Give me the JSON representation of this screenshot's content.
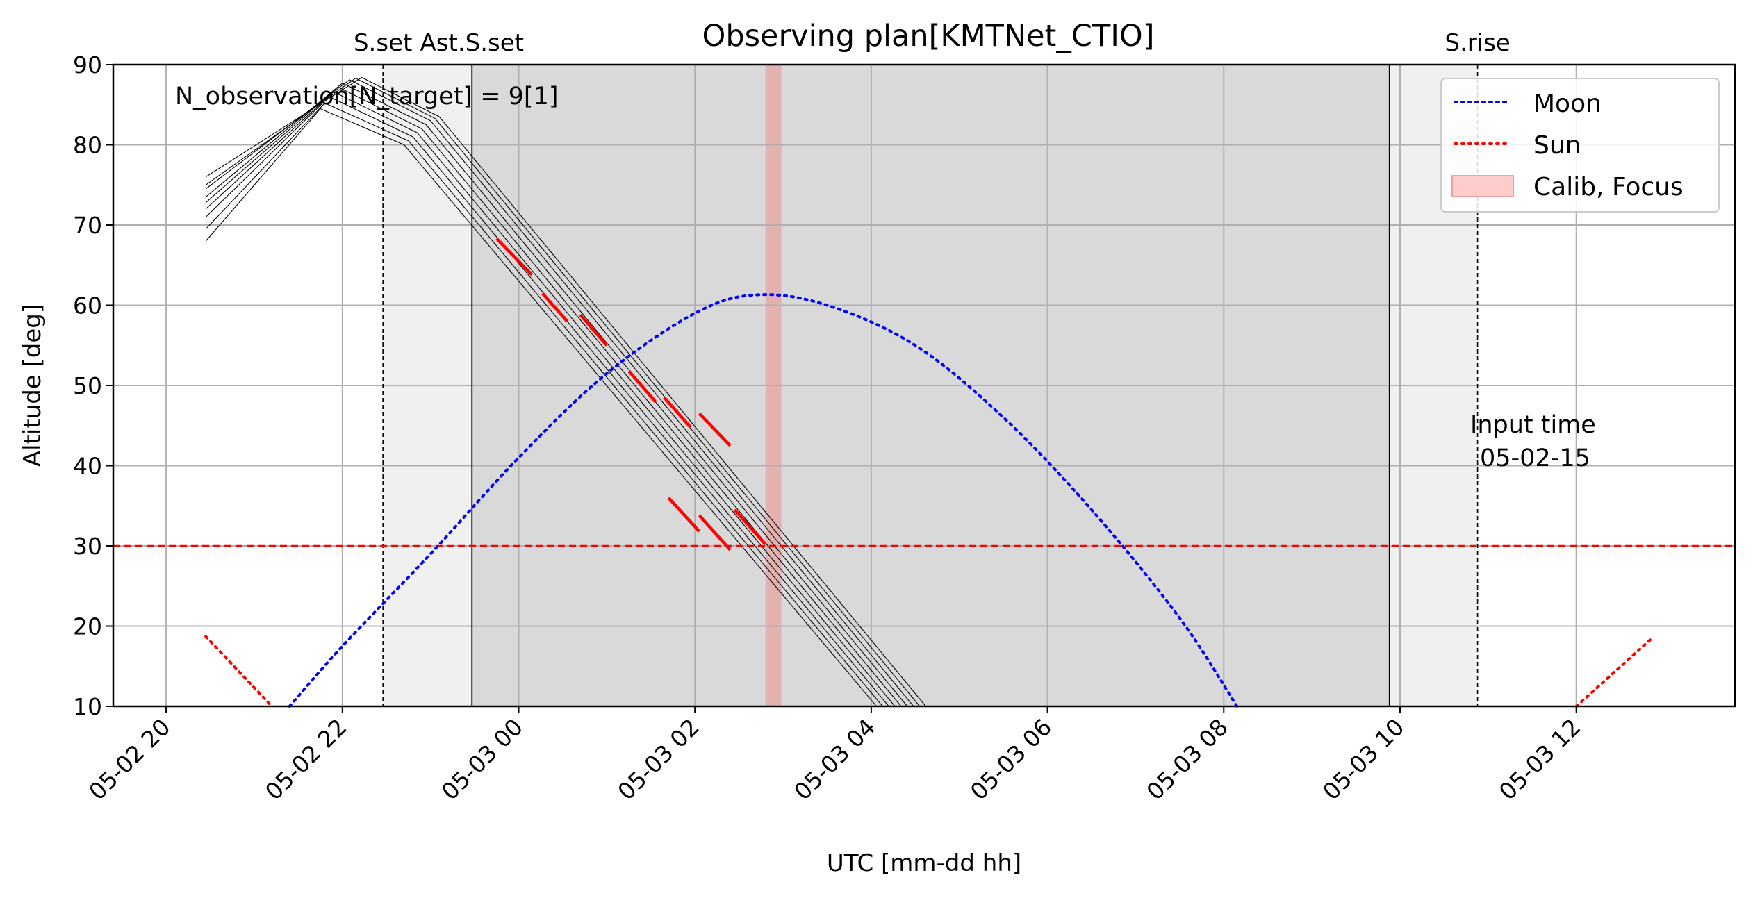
{
  "chart_data": {
    "type": "line",
    "title": "Observing plan[KMTNet_CTIO]",
    "xlabel": "UTC [mm-dd hh]",
    "ylabel": "Altitude [deg]",
    "x_unit": "hours since 05-02 20:00 UTC",
    "xlim": [
      -0.6,
      17.8
    ],
    "ylim": [
      10,
      90
    ],
    "x_ticks": [
      {
        "x": 0,
        "label": "05-02 20"
      },
      {
        "x": 2,
        "label": "05-02 22"
      },
      {
        "x": 4,
        "label": "05-03 00"
      },
      {
        "x": 6,
        "label": "05-03 02"
      },
      {
        "x": 8,
        "label": "05-03 04"
      },
      {
        "x": 10,
        "label": "05-03 06"
      },
      {
        "x": 12,
        "label": "05-03 08"
      },
      {
        "x": 14,
        "label": "05-03 10"
      },
      {
        "x": 16,
        "label": "05-03 12"
      }
    ],
    "y_ticks": [
      10,
      20,
      30,
      40,
      50,
      60,
      70,
      80,
      90
    ],
    "grid": true,
    "legend_position": "top-right",
    "legend": [
      {
        "label": "Moon",
        "color": "#0000ff",
        "style": "dotted"
      },
      {
        "label": "Sun",
        "color": "#ff0000",
        "style": "dotted"
      },
      {
        "label": "Calib, Focus",
        "color": "#ffcccc",
        "style": "patch"
      }
    ],
    "annotation": "N_observation[N_target] = 9[1]",
    "input_time": {
      "x": 14.0,
      "y": 42,
      "lines": [
        "Input time",
        "05-02-15"
      ]
    },
    "limit_line": {
      "y": 30,
      "color": "#ff0000"
    },
    "events": [
      {
        "label": "S.set",
        "x": 2.46,
        "style": "dashed"
      },
      {
        "label": "Ast.S.set",
        "x": 3.47,
        "style": "solid"
      },
      {
        "label": "",
        "x": 13.88,
        "style": "solid"
      },
      {
        "label": "S.rise",
        "x": 14.88,
        "style": "dashed"
      }
    ],
    "twilight_bands": [
      {
        "x0": 2.46,
        "x1": 3.47,
        "color": "#f0f0f0"
      },
      {
        "x0": 13.88,
        "x1": 14.88,
        "color": "#f0f0f0"
      }
    ],
    "night_band": {
      "x0": 3.47,
      "x1": 13.88,
      "color": "#d9d9d9"
    },
    "calib_band": {
      "x0": 6.8,
      "x1": 6.98,
      "color": "#e8a0a0"
    },
    "moon": {
      "color": "#0000ff",
      "points": [
        [
          1.4,
          10
        ],
        [
          2.0,
          17.5
        ],
        [
          3.0,
          29
        ],
        [
          4.0,
          41
        ],
        [
          5.0,
          51.5
        ],
        [
          6.0,
          59
        ],
        [
          6.7,
          61.3
        ],
        [
          7.5,
          60
        ],
        [
          8.5,
          55
        ],
        [
          9.5,
          46
        ],
        [
          10.5,
          34.5
        ],
        [
          11.5,
          21
        ],
        [
          12.15,
          10
        ]
      ]
    },
    "sun": {
      "color": "#ff0000",
      "segments": [
        [
          [
            0.45,
            18.7
          ],
          [
            1.2,
            10
          ]
        ],
        [
          [
            16.0,
            10
          ],
          [
            16.85,
            18.4
          ]
        ]
      ]
    },
    "targets": {
      "color": "#000000",
      "tracks": [
        [
          [
            0.45,
            68.0
          ],
          [
            1.75,
            84.5
          ],
          [
            2.7,
            80.0
          ],
          [
            8.06,
            10
          ]
        ],
        [
          [
            0.45,
            69.5
          ],
          [
            1.8,
            85.2
          ],
          [
            2.75,
            80.5
          ],
          [
            8.13,
            10
          ]
        ],
        [
          [
            0.45,
            71.0
          ],
          [
            1.85,
            86.0
          ],
          [
            2.8,
            81.0
          ],
          [
            8.2,
            10
          ]
        ],
        [
          [
            0.45,
            72.0
          ],
          [
            1.9,
            86.6
          ],
          [
            2.85,
            81.5
          ],
          [
            8.27,
            10
          ]
        ],
        [
          [
            0.45,
            72.8
          ],
          [
            1.95,
            87.2
          ],
          [
            2.9,
            82.0
          ],
          [
            8.34,
            10
          ]
        ],
        [
          [
            0.45,
            73.5
          ],
          [
            2.0,
            87.7
          ],
          [
            2.95,
            82.5
          ],
          [
            8.41,
            10
          ]
        ],
        [
          [
            0.45,
            74.5
          ],
          [
            2.08,
            88.1
          ],
          [
            3.0,
            83.0
          ],
          [
            8.48,
            10
          ]
        ],
        [
          [
            0.45,
            75.0
          ],
          [
            2.15,
            88.3
          ],
          [
            3.05,
            83.3
          ],
          [
            8.55,
            10
          ]
        ],
        [
          [
            0.45,
            76.0
          ],
          [
            2.22,
            88.4
          ],
          [
            3.1,
            83.5
          ],
          [
            8.62,
            10
          ]
        ]
      ]
    },
    "scheduled_exposures": {
      "color": "#ff0000",
      "segments": [
        [
          [
            3.75,
            68.3
          ],
          [
            4.15,
            63.8
          ]
        ],
        [
          [
            4.27,
            61.5
          ],
          [
            4.55,
            58.0
          ]
        ],
        [
          [
            4.7,
            58.8
          ],
          [
            5.0,
            55.0
          ]
        ],
        [
          [
            5.25,
            51.8
          ],
          [
            5.55,
            48.0
          ]
        ],
        [
          [
            5.65,
            48.5
          ],
          [
            5.95,
            44.8
          ]
        ],
        [
          [
            6.05,
            46.5
          ],
          [
            6.4,
            42.5
          ]
        ],
        [
          [
            5.7,
            36.0
          ],
          [
            6.05,
            31.8
          ]
        ],
        [
          [
            6.05,
            33.8
          ],
          [
            6.4,
            29.5
          ]
        ],
        [
          [
            6.45,
            34.5
          ],
          [
            6.8,
            30.2
          ]
        ]
      ]
    }
  }
}
